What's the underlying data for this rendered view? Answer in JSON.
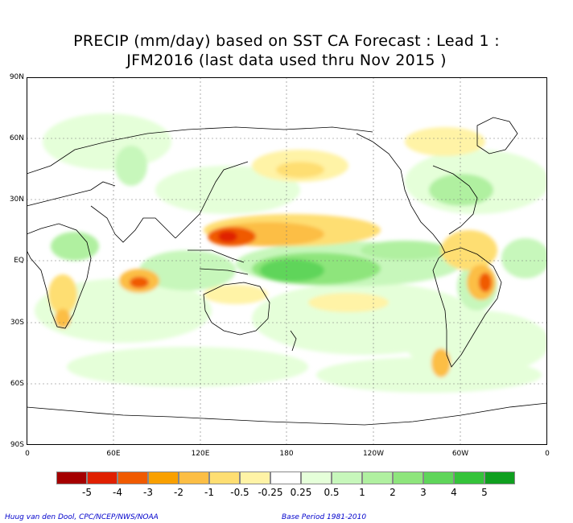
{
  "title_line1": "PRECIP (mm/day) based on SST CA Forecast : Lead 1 :",
  "title_line2": "JFM2016 (last data used thru Nov 2015 )",
  "lat_labels": [
    "90N",
    "60N",
    "30N",
    "EQ",
    "30S",
    "60S",
    "90S"
  ],
  "lon_labels": [
    "0",
    "60E",
    "120E",
    "180",
    "120W",
    "60W",
    "0"
  ],
  "colorbar": {
    "colors": [
      "#a50000",
      "#e02000",
      "#f05a00",
      "#f9a000",
      "#fcbe45",
      "#fede72",
      "#fff3a6",
      "#ffffff",
      "#e5ffd9",
      "#c7f7bb",
      "#b0f0a0",
      "#8ee57c",
      "#5fd55a",
      "#35c33a",
      "#0f9f1f"
    ],
    "labels": [
      "-5",
      "-4",
      "-3",
      "-2",
      "-1",
      "-0.5",
      "-0.25",
      "0.25",
      "0.5",
      "1",
      "2",
      "3",
      "4",
      "5"
    ]
  },
  "credit_left": "Huug van den Dool, CPC/NCEP/NWS/NOAA",
  "credit_right": "Base Period 1981-2010"
}
